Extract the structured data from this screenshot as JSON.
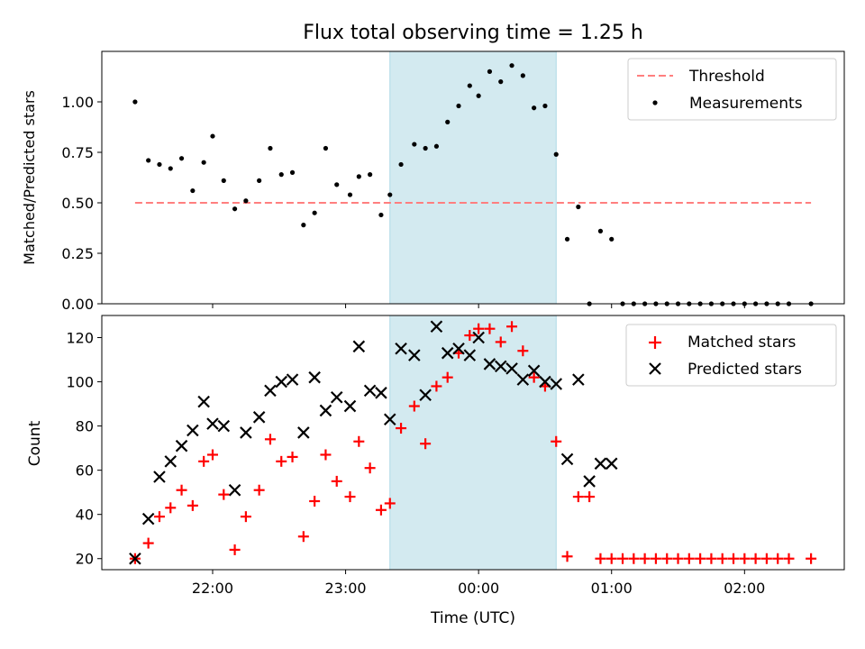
{
  "chart_data": [
    {
      "type": "scatter",
      "title": "Flux total observing time = 1.25 h",
      "xlabel": "",
      "ylabel": "Matched/Predicted stars",
      "ylim": [
        0,
        1.25
      ],
      "yticks": [
        0.0,
        0.25,
        0.5,
        0.75,
        1.0
      ],
      "ytick_labels": [
        "0.00",
        "0.25",
        "0.50",
        "0.75",
        "1.00"
      ],
      "threshold": {
        "name": "Threshold",
        "value": 0.5,
        "x_start": "21:25",
        "x_end": "02:30",
        "color": "#ff7f7f"
      },
      "highlight": {
        "x_start": "23:20",
        "x_end": "00:35",
        "color": "#d3eaf0"
      },
      "legend": {
        "placement": "upper right",
        "entries": [
          "Threshold",
          "Measurements"
        ]
      },
      "series": [
        {
          "name": "Measurements",
          "color": "#000000",
          "x": [
            "21:25",
            "21:31",
            "21:36",
            "21:41",
            "21:46",
            "21:51",
            "21:56",
            "22:00",
            "22:05",
            "22:10",
            "22:15",
            "22:21",
            "22:26",
            "22:31",
            "22:36",
            "22:41",
            "22:46",
            "22:51",
            "22:56",
            "23:02",
            "23:06",
            "23:11",
            "23:16",
            "23:20",
            "23:25",
            "23:31",
            "23:36",
            "23:41",
            "23:46",
            "23:51",
            "23:56",
            "00:00",
            "00:05",
            "00:10",
            "00:15",
            "00:20",
            "00:25",
            "00:30",
            "00:35",
            "00:40",
            "00:45",
            "00:50",
            "00:55",
            "01:00",
            "01:05",
            "01:10",
            "01:15",
            "01:20",
            "01:25",
            "01:30",
            "01:35",
            "01:40",
            "01:45",
            "01:50",
            "01:55",
            "02:00",
            "02:05",
            "02:10",
            "02:15",
            "02:20",
            "02:30"
          ],
          "y": [
            1.0,
            0.71,
            0.69,
            0.67,
            0.72,
            0.56,
            0.7,
            0.83,
            0.61,
            0.47,
            0.51,
            0.61,
            0.77,
            0.64,
            0.65,
            0.39,
            0.45,
            0.77,
            0.59,
            0.54,
            0.63,
            0.64,
            0.44,
            0.54,
            0.69,
            0.79,
            0.77,
            0.78,
            0.9,
            0.98,
            1.08,
            1.03,
            1.15,
            1.1,
            1.18,
            1.13,
            0.97,
            0.98,
            0.74,
            0.32,
            0.48,
            0.0,
            0.36,
            0.32,
            0.0,
            0.0,
            0.0,
            0.0,
            0.0,
            0.0,
            0.0,
            0.0,
            0.0,
            0.0,
            0.0,
            0.0,
            0.0,
            0.0,
            0.0,
            0.0,
            0.0
          ]
        }
      ]
    },
    {
      "type": "scatter",
      "title": "",
      "xlabel": "Time (UTC)",
      "ylabel": "Count",
      "ylim": [
        15,
        130
      ],
      "yticks": [
        20,
        40,
        60,
        80,
        100,
        120
      ],
      "xlim": [
        "21:10",
        "02:45"
      ],
      "xticks": [
        "22:00",
        "23:00",
        "00:00",
        "01:00",
        "02:00"
      ],
      "highlight": {
        "x_start": "23:20",
        "x_end": "00:35",
        "color": "#d3eaf0"
      },
      "legend": {
        "placement": "upper right",
        "entries": [
          "Matched stars",
          "Predicted stars"
        ]
      },
      "series": [
        {
          "name": "Matched stars",
          "marker": "plus",
          "color": "#ff0000",
          "x": [
            "21:25",
            "21:31",
            "21:36",
            "21:41",
            "21:46",
            "21:51",
            "21:56",
            "22:00",
            "22:05",
            "22:10",
            "22:15",
            "22:21",
            "22:26",
            "22:31",
            "22:36",
            "22:41",
            "22:46",
            "22:51",
            "22:56",
            "23:02",
            "23:06",
            "23:11",
            "23:16",
            "23:20",
            "23:25",
            "23:31",
            "23:36",
            "23:41",
            "23:46",
            "23:51",
            "23:56",
            "00:00",
            "00:05",
            "00:10",
            "00:15",
            "00:20",
            "00:25",
            "00:30",
            "00:35",
            "00:40",
            "00:45",
            "00:50",
            "00:55",
            "01:00",
            "01:05",
            "01:10",
            "01:15",
            "01:20",
            "01:25",
            "01:30",
            "01:35",
            "01:40",
            "01:45",
            "01:50",
            "01:55",
            "02:00",
            "02:05",
            "02:10",
            "02:15",
            "02:20",
            "02:30"
          ],
          "y": [
            20,
            27,
            39,
            43,
            51,
            44,
            64,
            67,
            49,
            24,
            39,
            51,
            74,
            64,
            66,
            30,
            46,
            67,
            55,
            48,
            73,
            61,
            42,
            45,
            79,
            89,
            72,
            98,
            102,
            113,
            121,
            124,
            124,
            118,
            125,
            114,
            102,
            98,
            73,
            21,
            48,
            48,
            20,
            20,
            20,
            20,
            20,
            20,
            20,
            20,
            20,
            20,
            20,
            20,
            20,
            20,
            20,
            20,
            20,
            20,
            20
          ]
        },
        {
          "name": "Predicted stars",
          "marker": "x",
          "color": "#000000",
          "x": [
            "21:25",
            "21:31",
            "21:36",
            "21:41",
            "21:46",
            "21:51",
            "21:56",
            "22:00",
            "22:05",
            "22:10",
            "22:15",
            "22:21",
            "22:26",
            "22:31",
            "22:36",
            "22:41",
            "22:46",
            "22:51",
            "22:56",
            "23:02",
            "23:06",
            "23:11",
            "23:16",
            "23:20",
            "23:25",
            "23:31",
            "23:36",
            "23:41",
            "23:46",
            "23:51",
            "23:56",
            "00:00",
            "00:05",
            "00:10",
            "00:15",
            "00:20",
            "00:25",
            "00:30",
            "00:35",
            "00:40",
            "00:45",
            "00:50",
            "00:55",
            "01:00"
          ],
          "y": [
            20,
            38,
            57,
            64,
            71,
            78,
            91,
            81,
            80,
            51,
            77,
            84,
            96,
            100,
            101,
            77,
            102,
            87,
            93,
            89,
            116,
            96,
            95,
            83,
            115,
            112,
            94,
            125,
            113,
            115,
            112,
            120,
            108,
            107,
            106,
            101,
            105,
            100,
            99,
            65,
            101,
            55,
            63,
            63
          ]
        }
      ]
    }
  ]
}
